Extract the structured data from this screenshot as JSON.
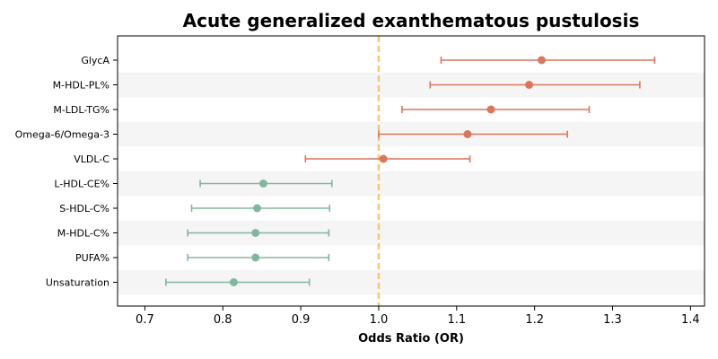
{
  "chart_data": {
    "type": "forest",
    "title": "Acute generalized exanthematous pustulosis",
    "xlabel": "Odds Ratio (OR)",
    "ylabel": "",
    "xlim": [
      0.665,
      1.418
    ],
    "xticks": [
      "0.7",
      "0.8",
      "0.9",
      "1.0",
      "1.1",
      "1.2",
      "1.3",
      "1.4"
    ],
    "reference_line": 1.0,
    "grid": false,
    "alternating_row_shading": true,
    "colors": {
      "risk": "#d9775d",
      "protective": "#84b59e",
      "reference": "#f2c879",
      "row_shade": "#f5f5f5"
    },
    "categories": [
      "GlycA",
      "M-HDL-PL%",
      "M-LDL-TG%",
      "Omega-6/Omega-3",
      "VLDL-C",
      "L-HDL-CE%",
      "S-HDL-C%",
      "M-HDL-C%",
      "PUFA%",
      "Unsaturation"
    ],
    "or": [
      1.209,
      1.193,
      1.144,
      1.114,
      1.006,
      0.852,
      0.844,
      0.842,
      0.842,
      0.814
    ],
    "lower": [
      1.08,
      1.066,
      1.03,
      1.0,
      0.906,
      0.771,
      0.76,
      0.755,
      0.755,
      0.727
    ],
    "upper": [
      1.354,
      1.335,
      1.27,
      1.242,
      1.117,
      0.94,
      0.937,
      0.936,
      0.936,
      0.911
    ],
    "group": [
      "risk",
      "risk",
      "risk",
      "risk",
      "risk",
      "protective",
      "protective",
      "protective",
      "protective",
      "protective"
    ]
  }
}
